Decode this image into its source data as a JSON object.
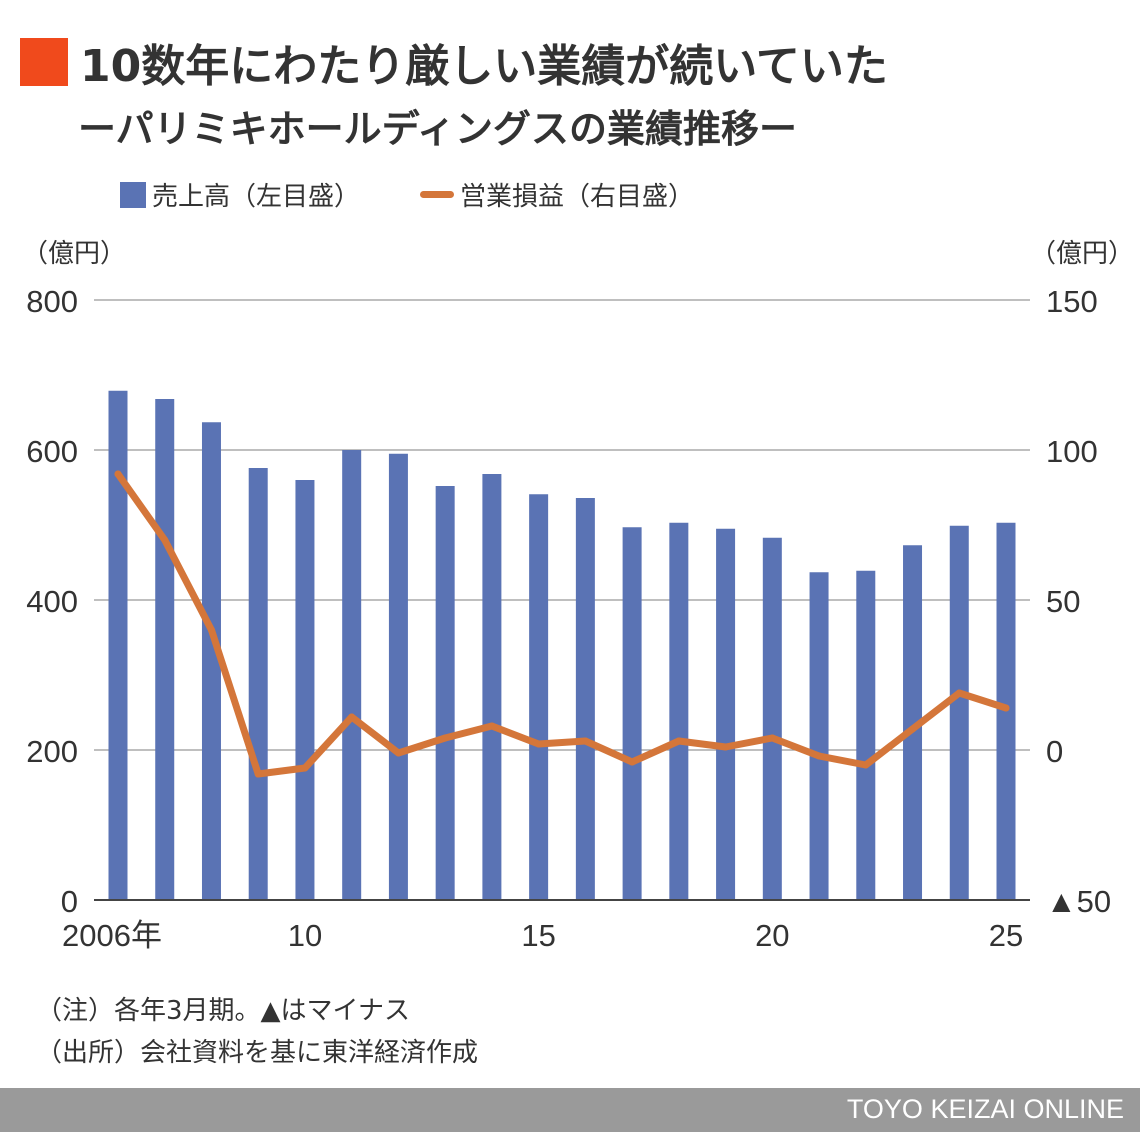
{
  "title": "10数年にわたり厳しい業績が続いていた",
  "subtitle": "ーパリミキホールディングスの業績推移ー",
  "colors": {
    "title_marker": "#f04a1c",
    "bars": "#5a73b4",
    "line": "#d4763a",
    "footer": "#9a9a9a"
  },
  "chart_data": {
    "type": "bar+line",
    "categories": [
      "2006",
      "2007",
      "2008",
      "2009",
      "2010",
      "2011",
      "2012",
      "2013",
      "2014",
      "2015",
      "2016",
      "2017",
      "2018",
      "2019",
      "2020",
      "2021",
      "2022",
      "2023",
      "2024",
      "2025"
    ],
    "x_tick_labels": [
      {
        "category": "2006",
        "label": "2006年"
      },
      {
        "category": "2010",
        "label": "10"
      },
      {
        "category": "2015",
        "label": "15"
      },
      {
        "category": "2020",
        "label": "20"
      },
      {
        "category": "2025",
        "label": "25"
      }
    ],
    "series": [
      {
        "name": "売上高（左目盛）",
        "type": "bar",
        "axis": "left",
        "values": [
          679,
          668,
          637,
          576,
          560,
          600,
          595,
          552,
          568,
          541,
          536,
          497,
          503,
          495,
          483,
          437,
          439,
          473,
          499,
          503
        ]
      },
      {
        "name": "営業損益（右目盛）",
        "type": "line",
        "axis": "right",
        "values": [
          92,
          70,
          40,
          -8,
          -6,
          11,
          -1,
          4,
          8,
          2,
          3,
          -4,
          3,
          1,
          4,
          -2,
          -5,
          7,
          19,
          14
        ]
      }
    ],
    "left_axis": {
      "unit": "（億円）",
      "ylim": [
        0,
        800
      ],
      "ticks": [
        {
          "v": 0,
          "label": "0"
        },
        {
          "v": 200,
          "label": "200"
        },
        {
          "v": 400,
          "label": "400"
        },
        {
          "v": 600,
          "label": "600"
        },
        {
          "v": 800,
          "label": "800"
        }
      ]
    },
    "right_axis": {
      "unit": "（億円）",
      "ylim": [
        -50,
        150
      ],
      "ticks": [
        {
          "v": -50,
          "label": "▲50"
        },
        {
          "v": 0,
          "label": "0"
        },
        {
          "v": 50,
          "label": "50"
        },
        {
          "v": 100,
          "label": "100"
        },
        {
          "v": 150,
          "label": "150"
        }
      ]
    },
    "grid": true,
    "legend_position": "top-left"
  },
  "notes": [
    "（注）各年3月期。▲はマイナス",
    "（出所）会社資料を基に東洋経済作成"
  ],
  "footer": "TOYO KEIZAI ONLINE"
}
